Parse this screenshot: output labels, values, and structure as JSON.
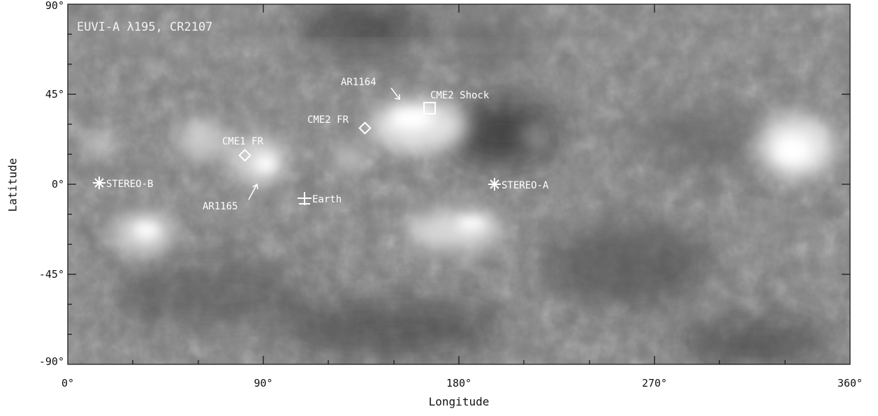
{
  "title": "EUVI-A λ195, CR2107",
  "axes": {
    "xlabel": "Longitude",
    "ylabel": "Latitude",
    "xticks": [
      "0°",
      "90°",
      "180°",
      "270°",
      "360°"
    ],
    "yticks": [
      "90°",
      "45°",
      "0°",
      "-45°",
      "-90°"
    ]
  },
  "markers": {
    "stereo_b": "STEREO-B",
    "stereo_a": "STEREO-A",
    "earth": "Earth",
    "ar1164": "AR1164",
    "ar1165": "AR1165",
    "cme1_fr": "CME1 FR",
    "cme2_fr": "CME2 FR",
    "cme2_shock": "CME2 Shock"
  }
}
